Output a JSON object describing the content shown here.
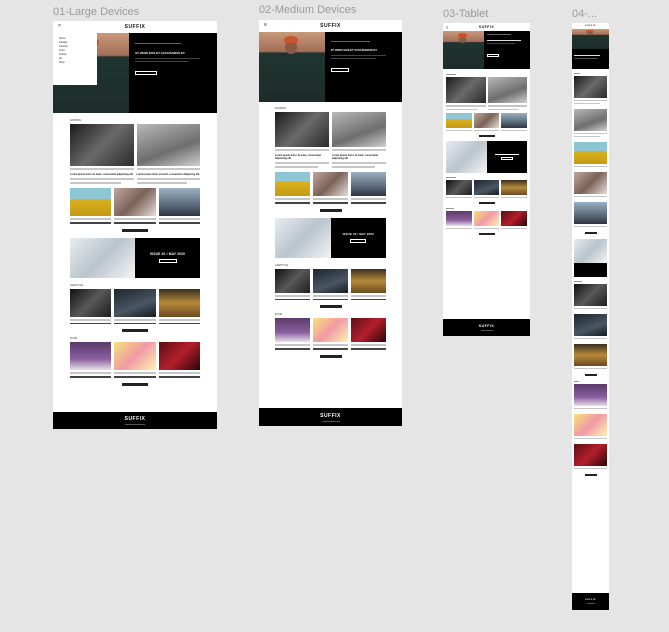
{
  "frames": [
    {
      "id": "large",
      "label": "01-Large Devices"
    },
    {
      "id": "medium",
      "label": "02-Medium Devices"
    },
    {
      "id": "tablet",
      "label": "03-Tablet"
    },
    {
      "id": "mobile",
      "label": "04-..."
    }
  ],
  "site": {
    "logo": "SUFFIX",
    "hero_headline": "AT VERO EOS ET ACCUSAMUS ET",
    "hero_headline_medium": "AT VERO EOS ET ACCUSAMUS ET",
    "read_more": "READ MORE",
    "article_title_1": "Lorem ipsum dolor sit amet, consectetur adipiscing elit",
    "article_title_2": "Lorem ipsum dolor sit amet, consectetur adipiscing elit",
    "issue_banner": "ISSUE 20 / MAY 2020",
    "subscribe": "SUBSCRIBE NOW",
    "sections": {
      "fashion": "FASHION",
      "lifestyle": "LIFESTYLE",
      "food": "FOOD"
    },
    "load_more": "LOAD MORE",
    "menu_items": [
      "Home",
      "Fashion",
      "Lifestyle",
      "Food",
      "Culture",
      "Art",
      "Shop"
    ]
  }
}
